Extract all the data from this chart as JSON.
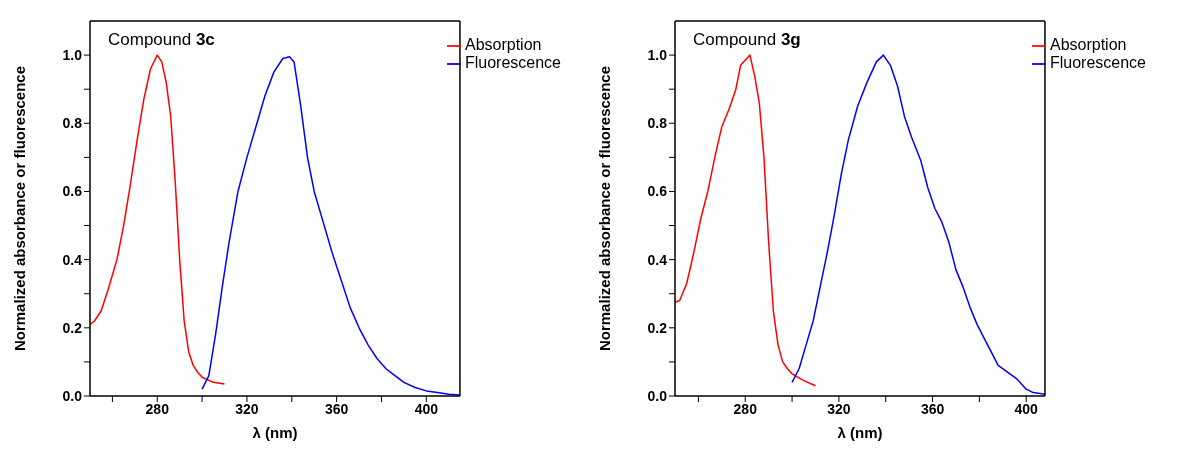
{
  "chart_data": [
    {
      "type": "line",
      "annotations": [
        "Compound 3c"
      ],
      "xlabel": "λ (nm)",
      "ylabel": "Normalized absorbance or fluorescence",
      "xlim": [
        250,
        415
      ],
      "ylim": [
        0,
        1.1
      ],
      "xticks": [
        {
          "value": 260,
          "label": null
        },
        280,
        {
          "value": 300,
          "label": null
        },
        320,
        {
          "value": 340,
          "label": null
        },
        360,
        {
          "value": 380,
          "label": null
        },
        400
      ],
      "yticks": [
        {
          "value": 0,
          "label": "0.0"
        },
        {
          "value": 0.1,
          "label": null
        },
        {
          "value": 0.2,
          "label": "0.2"
        },
        {
          "value": 0.3,
          "label": null
        },
        {
          "value": 0.4,
          "label": "0.4"
        },
        {
          "value": 0.5,
          "label": null
        },
        {
          "value": 0.6,
          "label": "0.6"
        },
        {
          "value": 0.7,
          "label": null
        },
        {
          "value": 0.8,
          "label": "0.8"
        },
        {
          "value": 0.9,
          "label": null
        },
        {
          "value": 1.0,
          "label": "1.0"
        }
      ],
      "legend": "top right",
      "marker": "none",
      "line_style": "solid",
      "series": [
        {
          "name": "Absorption",
          "color": "#ff0000",
          "x": [
            250,
            252,
            255,
            258,
            262,
            265,
            268,
            271,
            274,
            277,
            280,
            282,
            284,
            286,
            288,
            290,
            292,
            294,
            296,
            298,
            300,
            305,
            310
          ],
          "values": [
            0.21,
            0.22,
            0.25,
            0.31,
            0.4,
            0.5,
            0.62,
            0.75,
            0.87,
            0.96,
            1.0,
            0.98,
            0.92,
            0.82,
            0.63,
            0.4,
            0.22,
            0.13,
            0.09,
            0.07,
            0.055,
            0.04,
            0.035
          ]
        },
        {
          "name": "Fluorescence",
          "color": "#0000ff",
          "x": [
            300,
            303,
            306,
            309,
            312,
            316,
            320,
            324,
            328,
            332,
            336,
            339,
            341,
            344,
            347,
            350,
            354,
            358,
            362,
            366,
            370,
            374,
            378,
            382,
            386,
            390,
            395,
            400,
            405,
            410,
            415
          ],
          "values": [
            0.02,
            0.06,
            0.18,
            0.32,
            0.45,
            0.6,
            0.7,
            0.79,
            0.88,
            0.95,
            0.99,
            0.995,
            0.98,
            0.85,
            0.7,
            0.6,
            0.51,
            0.42,
            0.34,
            0.26,
            0.2,
            0.15,
            0.11,
            0.08,
            0.06,
            0.04,
            0.025,
            0.015,
            0.01,
            0.005,
            0.003
          ]
        }
      ]
    },
    {
      "type": "line",
      "annotations": [
        "Compound 3g"
      ],
      "xlabel": "λ (nm)",
      "ylabel": "Normalized absorbance or fluorescence",
      "xlim": [
        250,
        408
      ],
      "ylim": [
        0,
        1.1
      ],
      "xticks": [
        {
          "value": 260,
          "label": null
        },
        280,
        {
          "value": 300,
          "label": null
        },
        320,
        {
          "value": 340,
          "label": null
        },
        360,
        {
          "value": 380,
          "label": null
        },
        400
      ],
      "yticks": [
        {
          "value": 0,
          "label": "0.0"
        },
        {
          "value": 0.1,
          "label": null
        },
        {
          "value": 0.2,
          "label": "0.2"
        },
        {
          "value": 0.3,
          "label": null
        },
        {
          "value": 0.4,
          "label": "0.4"
        },
        {
          "value": 0.5,
          "label": null
        },
        {
          "value": 0.6,
          "label": "0.6"
        },
        {
          "value": 0.7,
          "label": null
        },
        {
          "value": 0.8,
          "label": "0.8"
        },
        {
          "value": 0.9,
          "label": null
        },
        {
          "value": 1.0,
          "label": "1.0"
        }
      ],
      "legend": "top right",
      "marker": "none",
      "line_style": "solid",
      "series": [
        {
          "name": "Absorption",
          "color": "#ff0000",
          "x": [
            250,
            252,
            255,
            258,
            261,
            264,
            267,
            270,
            273,
            276,
            278,
            282,
            284,
            286,
            288,
            290,
            292,
            294,
            296,
            298,
            300,
            305,
            310
          ],
          "values": [
            0.275,
            0.28,
            0.33,
            0.42,
            0.52,
            0.6,
            0.7,
            0.79,
            0.84,
            0.9,
            0.97,
            1.0,
            0.94,
            0.86,
            0.7,
            0.45,
            0.25,
            0.15,
            0.1,
            0.08,
            0.065,
            0.045,
            0.03
          ]
        },
        {
          "name": "Fluorescence",
          "color": "#0000ff",
          "x": [
            300,
            303,
            306,
            309,
            312,
            315,
            318,
            321,
            324,
            328,
            332,
            336,
            339,
            342,
            345,
            348,
            351,
            355,
            358,
            361,
            364,
            367,
            370,
            373,
            376,
            379,
            382,
            385,
            388,
            392,
            396,
            400,
            403,
            408
          ],
          "values": [
            0.04,
            0.08,
            0.15,
            0.22,
            0.32,
            0.42,
            0.53,
            0.65,
            0.75,
            0.85,
            0.92,
            0.98,
            1.0,
            0.97,
            0.91,
            0.82,
            0.76,
            0.69,
            0.61,
            0.55,
            0.51,
            0.45,
            0.37,
            0.32,
            0.26,
            0.21,
            0.17,
            0.13,
            0.09,
            0.07,
            0.05,
            0.02,
            0.01,
            0.005
          ]
        }
      ]
    }
  ]
}
